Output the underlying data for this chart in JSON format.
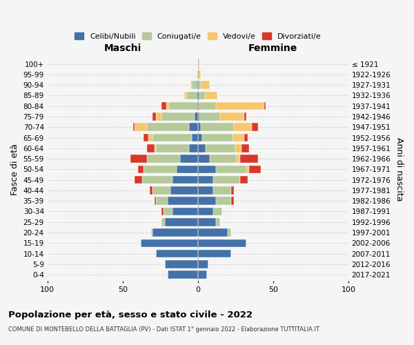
{
  "age_groups": [
    "100+",
    "95-99",
    "90-94",
    "85-89",
    "80-84",
    "75-79",
    "70-74",
    "65-69",
    "60-64",
    "55-59",
    "50-54",
    "45-49",
    "40-44",
    "35-39",
    "30-34",
    "25-29",
    "20-24",
    "15-19",
    "10-14",
    "5-9",
    "0-4"
  ],
  "birth_years": [
    "≤ 1921",
    "1922-1926",
    "1927-1931",
    "1932-1936",
    "1937-1941",
    "1942-1946",
    "1947-1951",
    "1952-1956",
    "1957-1961",
    "1962-1966",
    "1967-1971",
    "1972-1976",
    "1977-1981",
    "1982-1986",
    "1987-1991",
    "1992-1996",
    "1997-2001",
    "2002-2006",
    "2007-2011",
    "2012-2016",
    "2017-2021"
  ],
  "maschi": {
    "celibi": [
      0,
      0,
      1,
      1,
      1,
      2,
      6,
      4,
      6,
      12,
      14,
      17,
      18,
      20,
      17,
      22,
      30,
      38,
      28,
      22,
      20
    ],
    "coniugati": [
      0,
      1,
      3,
      6,
      18,
      22,
      28,
      26,
      22,
      22,
      22,
      20,
      12,
      8,
      6,
      2,
      1,
      0,
      0,
      0,
      0
    ],
    "vedovi": [
      0,
      0,
      1,
      2,
      2,
      4,
      8,
      3,
      1,
      0,
      0,
      0,
      0,
      0,
      0,
      0,
      0,
      0,
      0,
      0,
      0
    ],
    "divorziati": [
      0,
      0,
      0,
      0,
      3,
      2,
      1,
      3,
      5,
      11,
      4,
      5,
      2,
      1,
      1,
      0,
      0,
      0,
      0,
      0,
      0
    ]
  },
  "femmine": {
    "nubili": [
      0,
      0,
      0,
      1,
      0,
      1,
      2,
      3,
      5,
      8,
      12,
      10,
      10,
      12,
      10,
      12,
      20,
      32,
      22,
      7,
      6
    ],
    "coniugate": [
      0,
      0,
      2,
      4,
      12,
      14,
      22,
      20,
      20,
      18,
      20,
      18,
      12,
      10,
      6,
      3,
      2,
      0,
      0,
      0,
      0
    ],
    "vedove": [
      1,
      2,
      6,
      8,
      32,
      16,
      12,
      8,
      4,
      2,
      2,
      0,
      0,
      0,
      0,
      0,
      0,
      0,
      0,
      0,
      0
    ],
    "divorziate": [
      0,
      0,
      0,
      0,
      1,
      1,
      4,
      2,
      5,
      12,
      8,
      5,
      2,
      2,
      0,
      0,
      0,
      0,
      0,
      0,
      0
    ]
  },
  "colors": {
    "celibi": "#4472a8",
    "coniugati": "#b5c99a",
    "vedovi": "#f5c76e",
    "divorziati": "#d9372a"
  },
  "title": "Popolazione per età, sesso e stato civile - 2022",
  "subtitle": "COMUNE DI MONTEBELLO DELLA BATTAGLIA (PV) - Dati ISTAT 1° gennaio 2022 - Elaborazione TUTTITALIA.IT",
  "xlabel_left": "Maschi",
  "xlabel_right": "Femmine",
  "ylabel_left": "Fasce di età",
  "ylabel_right": "Anni di nascita",
  "xlim": 100,
  "legend_labels": [
    "Celibi/Nubili",
    "Coniugati/e",
    "Vedovi/e",
    "Divorziati/e"
  ],
  "bg_color": "#f5f5f5"
}
